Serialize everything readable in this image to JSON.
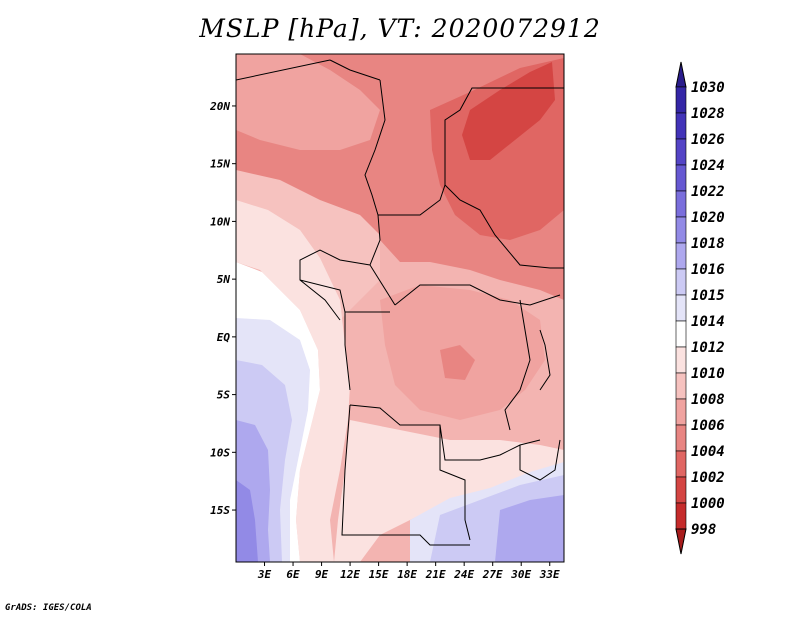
{
  "title": "MSLP [hPa], VT: 2020072912",
  "credit": "GrADS: IGES/COLA",
  "axes": {
    "lat_labels": [
      "20N",
      "15N",
      "10N",
      "5N",
      "EQ",
      "5S",
      "10S",
      "15S"
    ],
    "lat_values": [
      20,
      15,
      10,
      5,
      0,
      -5,
      -10,
      -15
    ],
    "lon_labels": [
      "3E",
      "6E",
      "9E",
      "12E",
      "15E",
      "18E",
      "21E",
      "24E",
      "27E",
      "30E",
      "33E"
    ],
    "lon_values": [
      3,
      6,
      9,
      12,
      15,
      18,
      21,
      24,
      27,
      30,
      33
    ],
    "lon_range": [
      0,
      34.5
    ],
    "lat_range": [
      -19.5,
      24.5
    ]
  },
  "colorbar": {
    "levels": [
      "1030",
      "1028",
      "1026",
      "1024",
      "1022",
      "1020",
      "1018",
      "1016",
      "1015",
      "1014",
      "1012",
      "1010",
      "1008",
      "1006",
      "1004",
      "1002",
      "1000",
      "998"
    ],
    "colors": [
      "#2a1c8c",
      "#3426a6",
      "#4233b8",
      "#5444c6",
      "#6658d2",
      "#7a6edc",
      "#928ae6",
      "#aea8ee",
      "#cccaf4",
      "#e4e4f8",
      "#ffffff",
      "#fbe2e0",
      "#f6c2bf",
      "#f0a3a0",
      "#e88582",
      "#e06663",
      "#d44543",
      "#c52b2b",
      "#a81c1c"
    ]
  },
  "map_fields": {
    "ocean_regions": [
      "eq-ocean",
      "ocean-1016",
      "ocean-1018",
      "ocean-1020",
      "ocean-1022"
    ],
    "land_regions": [
      "sahel-north",
      "sahel-core",
      "central-band",
      "congo-basin",
      "southern-band",
      "kalahari"
    ]
  }
}
